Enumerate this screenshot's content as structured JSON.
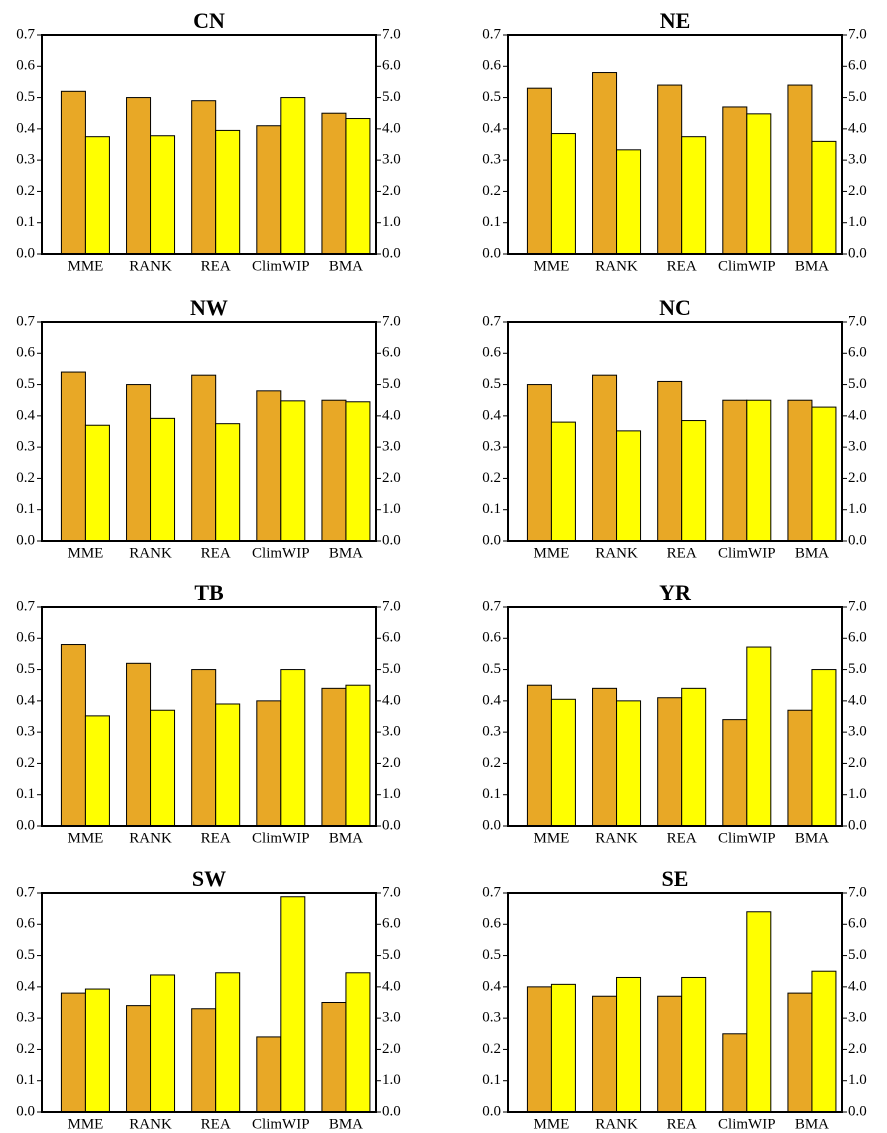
{
  "chart_data": [
    {
      "type": "bar",
      "title": "CN",
      "categories": [
        "MME",
        "RANK",
        "REA",
        "ClimWIP",
        "BMA"
      ],
      "series": [
        {
          "color": "#e8a826",
          "values": [
            0.52,
            0.5,
            0.49,
            0.41,
            0.45
          ]
        },
        {
          "color": "#ffff00",
          "axis": "y2",
          "values": [
            3.75,
            3.78,
            3.95,
            5.0,
            4.33
          ]
        }
      ],
      "ylim": [
        0,
        0.7
      ],
      "yticks": [
        {
          "value": 0,
          "label": "0.0"
        },
        0.1,
        0.2,
        0.3,
        0.4,
        0.5,
        0.6,
        0.7
      ],
      "y2lim": [
        0,
        7
      ],
      "y2ticks": [
        {
          "value": 0,
          "label": "0.0"
        },
        {
          "value": 1,
          "label": "1.0"
        },
        {
          "value": 2,
          "label": "2.0"
        },
        {
          "value": 3,
          "label": "3.0"
        },
        {
          "value": 4,
          "label": "4.0"
        },
        {
          "value": 5,
          "label": "5.0"
        },
        {
          "value": 6,
          "label": "6.0"
        },
        {
          "value": 7,
          "label": "7.0"
        }
      ]
    },
    {
      "type": "bar",
      "title": "NE",
      "categories": [
        "MME",
        "RANK",
        "REA",
        "ClimWIP",
        "BMA"
      ],
      "series": [
        {
          "color": "#e8a826",
          "values": [
            0.53,
            0.58,
            0.54,
            0.47,
            0.54
          ]
        },
        {
          "color": "#ffff00",
          "axis": "y2",
          "values": [
            3.85,
            3.33,
            3.75,
            4.48,
            3.6
          ]
        }
      ],
      "ylim": [
        0,
        0.7
      ],
      "yticks": [
        {
          "value": 0,
          "label": "0.0"
        },
        0.1,
        0.2,
        0.3,
        0.4,
        0.5,
        0.6,
        0.7
      ],
      "y2lim": [
        0,
        7
      ],
      "y2ticks": [
        {
          "value": 0,
          "label": "0.0"
        },
        {
          "value": 1,
          "label": "1.0"
        },
        {
          "value": 2,
          "label": "2.0"
        },
        {
          "value": 3,
          "label": "3.0"
        },
        {
          "value": 4,
          "label": "4.0"
        },
        {
          "value": 5,
          "label": "5.0"
        },
        {
          "value": 6,
          "label": "6.0"
        },
        {
          "value": 7,
          "label": "7.0"
        }
      ]
    },
    {
      "type": "bar",
      "title": "NW",
      "categories": [
        "MME",
        "RANK",
        "REA",
        "ClimWIP",
        "BMA"
      ],
      "series": [
        {
          "color": "#e8a826",
          "values": [
            0.54,
            0.5,
            0.53,
            0.48,
            0.45
          ]
        },
        {
          "color": "#ffff00",
          "axis": "y2",
          "values": [
            3.7,
            3.92,
            3.75,
            4.48,
            4.45
          ]
        }
      ],
      "ylim": [
        0,
        0.7
      ],
      "yticks": [
        {
          "value": 0,
          "label": "0.0"
        },
        0.1,
        0.2,
        0.3,
        0.4,
        0.5,
        0.6,
        0.7
      ],
      "y2lim": [
        0,
        7
      ],
      "y2ticks": [
        {
          "value": 0,
          "label": "0.0"
        },
        {
          "value": 1,
          "label": "1.0"
        },
        {
          "value": 2,
          "label": "2.0"
        },
        {
          "value": 3,
          "label": "3.0"
        },
        {
          "value": 4,
          "label": "4.0"
        },
        {
          "value": 5,
          "label": "5.0"
        },
        {
          "value": 6,
          "label": "6.0"
        },
        {
          "value": 7,
          "label": "7.0"
        }
      ]
    },
    {
      "type": "bar",
      "title": "NC",
      "categories": [
        "MME",
        "RANK",
        "REA",
        "ClimWIP",
        "BMA"
      ],
      "series": [
        {
          "color": "#e8a826",
          "values": [
            0.5,
            0.53,
            0.51,
            0.45,
            0.45
          ]
        },
        {
          "color": "#ffff00",
          "axis": "y2",
          "values": [
            3.8,
            3.52,
            3.85,
            4.5,
            4.28
          ]
        }
      ],
      "ylim": [
        0,
        0.7
      ],
      "yticks": [
        {
          "value": 0,
          "label": "0.0"
        },
        0.1,
        0.2,
        0.3,
        0.4,
        0.5,
        0.6,
        0.7
      ],
      "y2lim": [
        0,
        7
      ],
      "y2ticks": [
        {
          "value": 0,
          "label": "0.0"
        },
        {
          "value": 1,
          "label": "1.0"
        },
        {
          "value": 2,
          "label": "2.0"
        },
        {
          "value": 3,
          "label": "3.0"
        },
        {
          "value": 4,
          "label": "4.0"
        },
        {
          "value": 5,
          "label": "5.0"
        },
        {
          "value": 6,
          "label": "6.0"
        },
        {
          "value": 7,
          "label": "7.0"
        }
      ]
    },
    {
      "type": "bar",
      "title": "TB",
      "categories": [
        "MME",
        "RANK",
        "REA",
        "ClimWIP",
        "BMA"
      ],
      "series": [
        {
          "color": "#e8a826",
          "values": [
            0.58,
            0.52,
            0.5,
            0.4,
            0.44
          ]
        },
        {
          "color": "#ffff00",
          "axis": "y2",
          "values": [
            3.52,
            3.7,
            3.9,
            5.0,
            4.5
          ]
        }
      ],
      "ylim": [
        0,
        0.7
      ],
      "yticks": [
        {
          "value": 0,
          "label": "0.0"
        },
        0.1,
        0.2,
        0.3,
        0.4,
        0.5,
        0.6,
        0.7
      ],
      "y2lim": [
        0,
        7
      ],
      "y2ticks": [
        {
          "value": 0,
          "label": "0.0"
        },
        {
          "value": 1,
          "label": "1.0"
        },
        {
          "value": 2,
          "label": "2.0"
        },
        {
          "value": 3,
          "label": "3.0"
        },
        {
          "value": 4,
          "label": "4.0"
        },
        {
          "value": 5,
          "label": "5.0"
        },
        {
          "value": 6,
          "label": "6.0"
        },
        {
          "value": 7,
          "label": "7.0"
        }
      ]
    },
    {
      "type": "bar",
      "title": "YR",
      "categories": [
        "MME",
        "RANK",
        "REA",
        "ClimWIP",
        "BMA"
      ],
      "series": [
        {
          "color": "#e8a826",
          "values": [
            0.45,
            0.44,
            0.41,
            0.34,
            0.37
          ]
        },
        {
          "color": "#ffff00",
          "axis": "y2",
          "values": [
            4.05,
            4.0,
            4.4,
            5.72,
            5.0
          ]
        }
      ],
      "ylim": [
        0,
        0.7
      ],
      "yticks": [
        {
          "value": 0,
          "label": "0.0"
        },
        0.1,
        0.2,
        0.3,
        0.4,
        0.5,
        0.6,
        0.7
      ],
      "y2lim": [
        0,
        7
      ],
      "y2ticks": [
        {
          "value": 0,
          "label": "0.0"
        },
        {
          "value": 1,
          "label": "1.0"
        },
        {
          "value": 2,
          "label": "2.0"
        },
        {
          "value": 3,
          "label": "3.0"
        },
        {
          "value": 4,
          "label": "4.0"
        },
        {
          "value": 5,
          "label": "5.0"
        },
        {
          "value": 6,
          "label": "6.0"
        },
        {
          "value": 7,
          "label": "7.0"
        }
      ]
    },
    {
      "type": "bar",
      "title": "SW",
      "categories": [
        "MME",
        "RANK",
        "REA",
        "ClimWIP",
        "BMA"
      ],
      "series": [
        {
          "color": "#e8a826",
          "values": [
            0.38,
            0.34,
            0.33,
            0.24,
            0.35
          ]
        },
        {
          "color": "#ffff00",
          "axis": "y2",
          "values": [
            3.93,
            4.38,
            4.45,
            6.88,
            4.45
          ]
        }
      ],
      "ylim": [
        0,
        0.7
      ],
      "yticks": [
        {
          "value": 0,
          "label": "0.0"
        },
        0.1,
        0.2,
        0.3,
        0.4,
        0.5,
        0.6,
        0.7
      ],
      "y2lim": [
        0,
        7
      ],
      "y2ticks": [
        {
          "value": 0,
          "label": "0.0"
        },
        {
          "value": 1,
          "label": "1.0"
        },
        {
          "value": 2,
          "label": "2.0"
        },
        {
          "value": 3,
          "label": "3.0"
        },
        {
          "value": 4,
          "label": "4.0"
        },
        {
          "value": 5,
          "label": "5.0"
        },
        {
          "value": 6,
          "label": "6.0"
        },
        {
          "value": 7,
          "label": "7.0"
        }
      ]
    },
    {
      "type": "bar",
      "title": "SE",
      "categories": [
        "MME",
        "RANK",
        "REA",
        "ClimWIP",
        "BMA"
      ],
      "series": [
        {
          "color": "#e8a826",
          "values": [
            0.4,
            0.37,
            0.37,
            0.25,
            0.38
          ]
        },
        {
          "color": "#ffff00",
          "axis": "y2",
          "values": [
            4.08,
            4.3,
            4.3,
            6.4,
            4.5
          ]
        }
      ],
      "ylim": [
        0,
        0.7
      ],
      "yticks": [
        {
          "value": 0,
          "label": "0.0"
        },
        0.1,
        0.2,
        0.3,
        0.4,
        0.5,
        0.6,
        0.7
      ],
      "y2lim": [
        0,
        7
      ],
      "y2ticks": [
        {
          "value": 0,
          "label": "0.0"
        },
        {
          "value": 1,
          "label": "1.0"
        },
        {
          "value": 2,
          "label": "2.0"
        },
        {
          "value": 3,
          "label": "3.0"
        },
        {
          "value": 4,
          "label": "4.0"
        },
        {
          "value": 5,
          "label": "5.0"
        },
        {
          "value": 6,
          "label": "6.0"
        },
        {
          "value": 7,
          "label": "7.0"
        }
      ]
    }
  ]
}
